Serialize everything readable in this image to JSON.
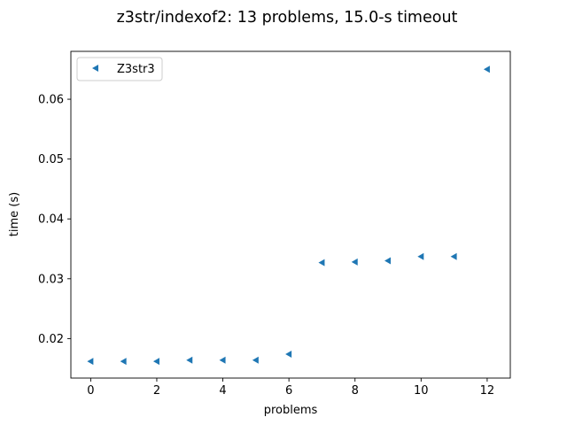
{
  "chart_data": {
    "type": "scatter",
    "title": "z3str/indexof2: 13 problems, 15.0-s timeout",
    "xlabel": "problems",
    "ylabel": "time (s)",
    "xlim": [
      -0.6,
      12.7
    ],
    "ylim": [
      0.0134,
      0.068
    ],
    "xticks": [
      0,
      2,
      4,
      6,
      8,
      10,
      12
    ],
    "xtick_labels": [
      "0",
      "2",
      "4",
      "6",
      "8",
      "10",
      "12"
    ],
    "yticks": [
      0.02,
      0.03,
      0.04,
      0.05,
      0.06
    ],
    "ytick_labels": [
      "0.02",
      "0.03",
      "0.04",
      "0.05",
      "0.06"
    ],
    "grid": false,
    "legend_position": "top-left",
    "series": [
      {
        "name": "Z3str3",
        "marker": "triangle-left",
        "color": "#1f77b4",
        "x": [
          0,
          1,
          2,
          3,
          4,
          5,
          6,
          7,
          8,
          9,
          10,
          11,
          12
        ],
        "y": [
          0.0162,
          0.0162,
          0.0162,
          0.0164,
          0.0164,
          0.0164,
          0.0174,
          0.0327,
          0.0328,
          0.033,
          0.0337,
          0.0337,
          0.065
        ]
      }
    ]
  }
}
